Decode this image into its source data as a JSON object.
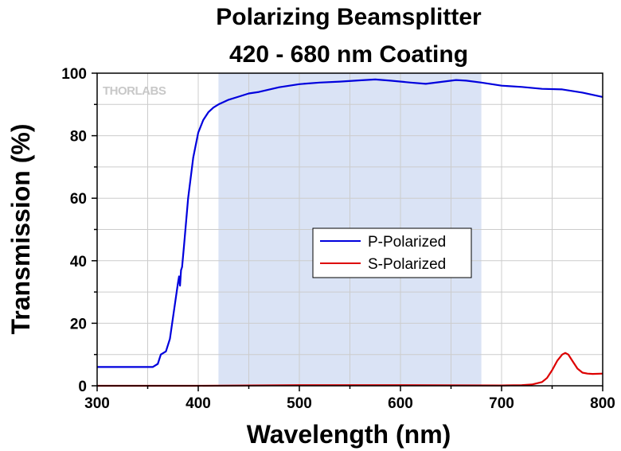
{
  "chart_data": {
    "type": "line",
    "title": [
      "Polarizing Beamsplitter",
      "420 - 680 nm Coating"
    ],
    "xlabel": "Wavelength (nm)",
    "ylabel": "Transmission (%)",
    "xlim": [
      300,
      800
    ],
    "ylim": [
      0,
      100
    ],
    "xticks": [
      300,
      400,
      500,
      600,
      700,
      800
    ],
    "yticks": [
      0,
      20,
      40,
      60,
      80,
      100
    ],
    "grid": true,
    "legend_position": "center",
    "highlight_band": [
      420,
      680
    ],
    "watermark": "THORLABS",
    "series": [
      {
        "name": "P-Polarized",
        "color": "#0000dd",
        "x": [
          300,
          355,
          360,
          363,
          368,
          372,
          376,
          380,
          381,
          382,
          383,
          384,
          386,
          390,
          395,
          400,
          405,
          410,
          415,
          420,
          430,
          440,
          450,
          460,
          480,
          500,
          520,
          540,
          560,
          575,
          590,
          610,
          625,
          640,
          655,
          665,
          680,
          700,
          720,
          740,
          760,
          780,
          800
        ],
        "y": [
          6,
          6,
          7,
          10,
          11,
          15,
          24,
          33,
          35,
          32,
          37,
          38,
          45,
          60,
          73,
          81,
          85,
          87.5,
          89,
          90,
          91.5,
          92.5,
          93.5,
          94,
          95.5,
          96.5,
          97,
          97.3,
          97.7,
          98,
          97.6,
          97,
          96.6,
          97.2,
          97.8,
          97.6,
          97,
          96,
          95.6,
          95,
          94.8,
          93.8,
          92.4
        ]
      },
      {
        "name": "S-Polarized",
        "color": "#dd0000",
        "x": [
          300,
          400,
          500,
          600,
          700,
          720,
          730,
          740,
          745,
          750,
          755,
          760,
          763,
          766,
          770,
          775,
          780,
          785,
          790,
          800
        ],
        "y": [
          0,
          0,
          0.2,
          0.2,
          0.1,
          0.2,
          0.4,
          1.2,
          2.5,
          5,
          8,
          10,
          10.5,
          10,
          8,
          5.5,
          4.2,
          3.9,
          3.8,
          3.9
        ]
      }
    ]
  }
}
